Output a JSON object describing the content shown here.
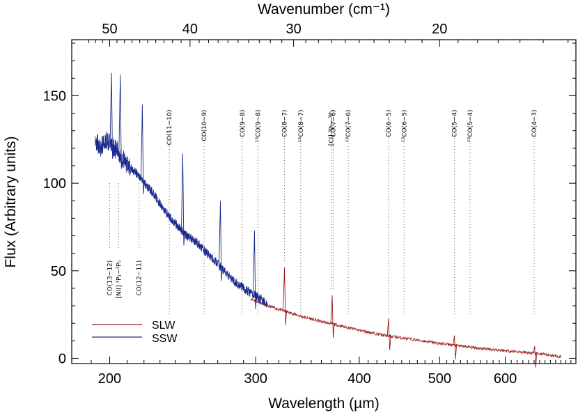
{
  "chart_data": {
    "type": "line",
    "xlabel": "Wavelength (µm)",
    "ylabel": "Flux (Arbitrary units)",
    "top_xlabel": "Wavenumber (cm⁻¹)",
    "x_scale": "log",
    "xlim": [
      180,
      730
    ],
    "ylim": [
      -3,
      182
    ],
    "x_ticks": [
      {
        "value": 200,
        "label": "200"
      },
      {
        "value": 300,
        "label": "300"
      },
      {
        "value": 400,
        "label": "400"
      },
      {
        "value": 500,
        "label": "500"
      },
      {
        "value": 600,
        "label": "600"
      }
    ],
    "y_ticks": [
      {
        "value": 0,
        "label": "0"
      },
      {
        "value": 50,
        "label": "50"
      },
      {
        "value": 100,
        "label": "100"
      },
      {
        "value": 150,
        "label": "150"
      }
    ],
    "top_ticks": [
      {
        "value": 50,
        "label": "50"
      },
      {
        "value": 40,
        "label": "40"
      },
      {
        "value": 30,
        "label": "30"
      },
      {
        "value": 20,
        "label": "20"
      }
    ],
    "legend": {
      "position": "bottom-left"
    },
    "series": [
      {
        "name": "SLW",
        "color": "#9b1c1c",
        "x": [
          296,
          310,
          325,
          340,
          360,
          380,
          400,
          430,
          460,
          500,
          540,
          580,
          620,
          660,
          700
        ],
        "y": [
          34,
          30,
          27,
          24,
          21,
          18.5,
          16,
          13,
          11,
          8.5,
          6.5,
          5,
          3.8,
          2.5,
          1
        ]
      },
      {
        "name": "SSW",
        "color": "#1a2a8c",
        "x": [
          192,
          195,
          198,
          201,
          204,
          207,
          210,
          214,
          218,
          222,
          226,
          230,
          236,
          242,
          248,
          255,
          262,
          270,
          278,
          286,
          294,
          302,
          310
        ],
        "y": [
          125,
          120,
          125,
          122,
          119,
          115,
          110,
          107,
          103,
          98,
          94,
          88,
          81,
          75,
          70,
          66,
          60,
          54,
          47,
          42,
          38,
          35,
          31
        ]
      }
    ],
    "spikes": [
      {
        "series": "SSW",
        "x": 201,
        "y": 163
      },
      {
        "series": "SSW",
        "x": 206,
        "y": 162
      },
      {
        "series": "SSW",
        "x": 219,
        "y": 145
      },
      {
        "series": "SSW",
        "x": 245,
        "y": 117
      },
      {
        "series": "SSW",
        "x": 272,
        "y": 90
      },
      {
        "series": "SSW",
        "x": 299,
        "y": 73
      },
      {
        "series": "SLW",
        "x": 325,
        "y": 52
      },
      {
        "series": "SLW",
        "x": 371,
        "y": 36
      },
      {
        "series": "SLW",
        "x": 434,
        "y": 23
      },
      {
        "series": "SLW",
        "x": 521,
        "y": 13
      },
      {
        "series": "SLW",
        "x": 651,
        "y": 7
      }
    ],
    "line_annotations": [
      {
        "label": "CO(13−12)",
        "x": 200,
        "side": "below"
      },
      {
        "label": "[NII] ³P₁−³P₀",
        "x": 205,
        "side": "below"
      },
      {
        "label": "CO(12−11)",
        "x": 217,
        "side": "below"
      },
      {
        "label": "CO(11−10)",
        "x": 236,
        "side": "above"
      },
      {
        "label": "CO(10−9)",
        "x": 260,
        "side": "above"
      },
      {
        "label": "CO(9−8)",
        "x": 289,
        "side": "above"
      },
      {
        "label": "¹³CO(9−8)",
        "x": 302,
        "side": "above"
      },
      {
        "label": "CO(8−7)",
        "x": 325,
        "side": "above"
      },
      {
        "label": "¹³CO(8−7)",
        "x": 340,
        "side": "above"
      },
      {
        "label": "[CI] ³P₂−³P₁",
        "x": 370,
        "side": "above"
      },
      {
        "label": "CO(7−6)",
        "x": 372,
        "side": "above"
      },
      {
        "label": "¹³CO(7−6)",
        "x": 388,
        "side": "above"
      },
      {
        "label": "CO(6−5)",
        "x": 434,
        "side": "above"
      },
      {
        "label": "¹³CO(6−5)",
        "x": 453,
        "side": "above"
      },
      {
        "label": "CO(5−4)",
        "x": 521,
        "side": "above"
      },
      {
        "label": "¹³CO(5−4)",
        "x": 544,
        "side": "above"
      },
      {
        "label": "CO(4−3)",
        "x": 650,
        "side": "above"
      }
    ]
  }
}
